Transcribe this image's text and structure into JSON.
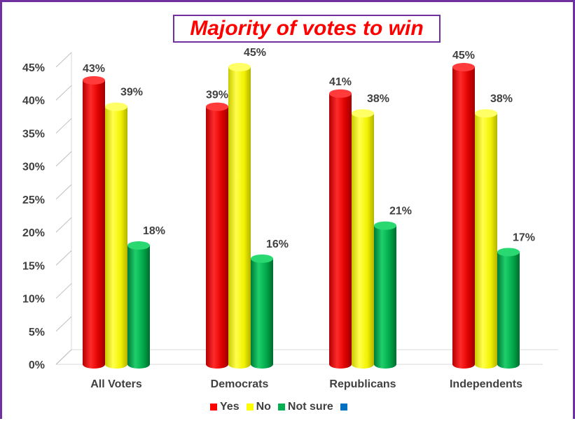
{
  "chart_data": {
    "type": "bar",
    "title": "Majority of votes to win",
    "categories": [
      "All Voters",
      "Democrats",
      "Republicans",
      "Independents"
    ],
    "series": [
      {
        "name": "Yes",
        "color": "#ff0000",
        "values": [
          43,
          39,
          41,
          45
        ],
        "labels": [
          "43%",
          "39%",
          "41%",
          "45%"
        ]
      },
      {
        "name": "No",
        "color": "#ffff00",
        "values": [
          39,
          45,
          38,
          38
        ],
        "labels": [
          "39%",
          "45%",
          "38%",
          "38%"
        ]
      },
      {
        "name": "Not sure",
        "color": "#00b050",
        "values": [
          18,
          16,
          21,
          17
        ],
        "labels": [
          "18%",
          "16%",
          "21%",
          "17%"
        ]
      }
    ],
    "extra_legend_color": "#0070c0",
    "yticks": [
      "0%",
      "5%",
      "10%",
      "15%",
      "20%",
      "25%",
      "30%",
      "35%",
      "40%",
      "45%"
    ],
    "ylim": [
      0,
      45
    ],
    "grid": false,
    "legend_position": "bottom"
  }
}
